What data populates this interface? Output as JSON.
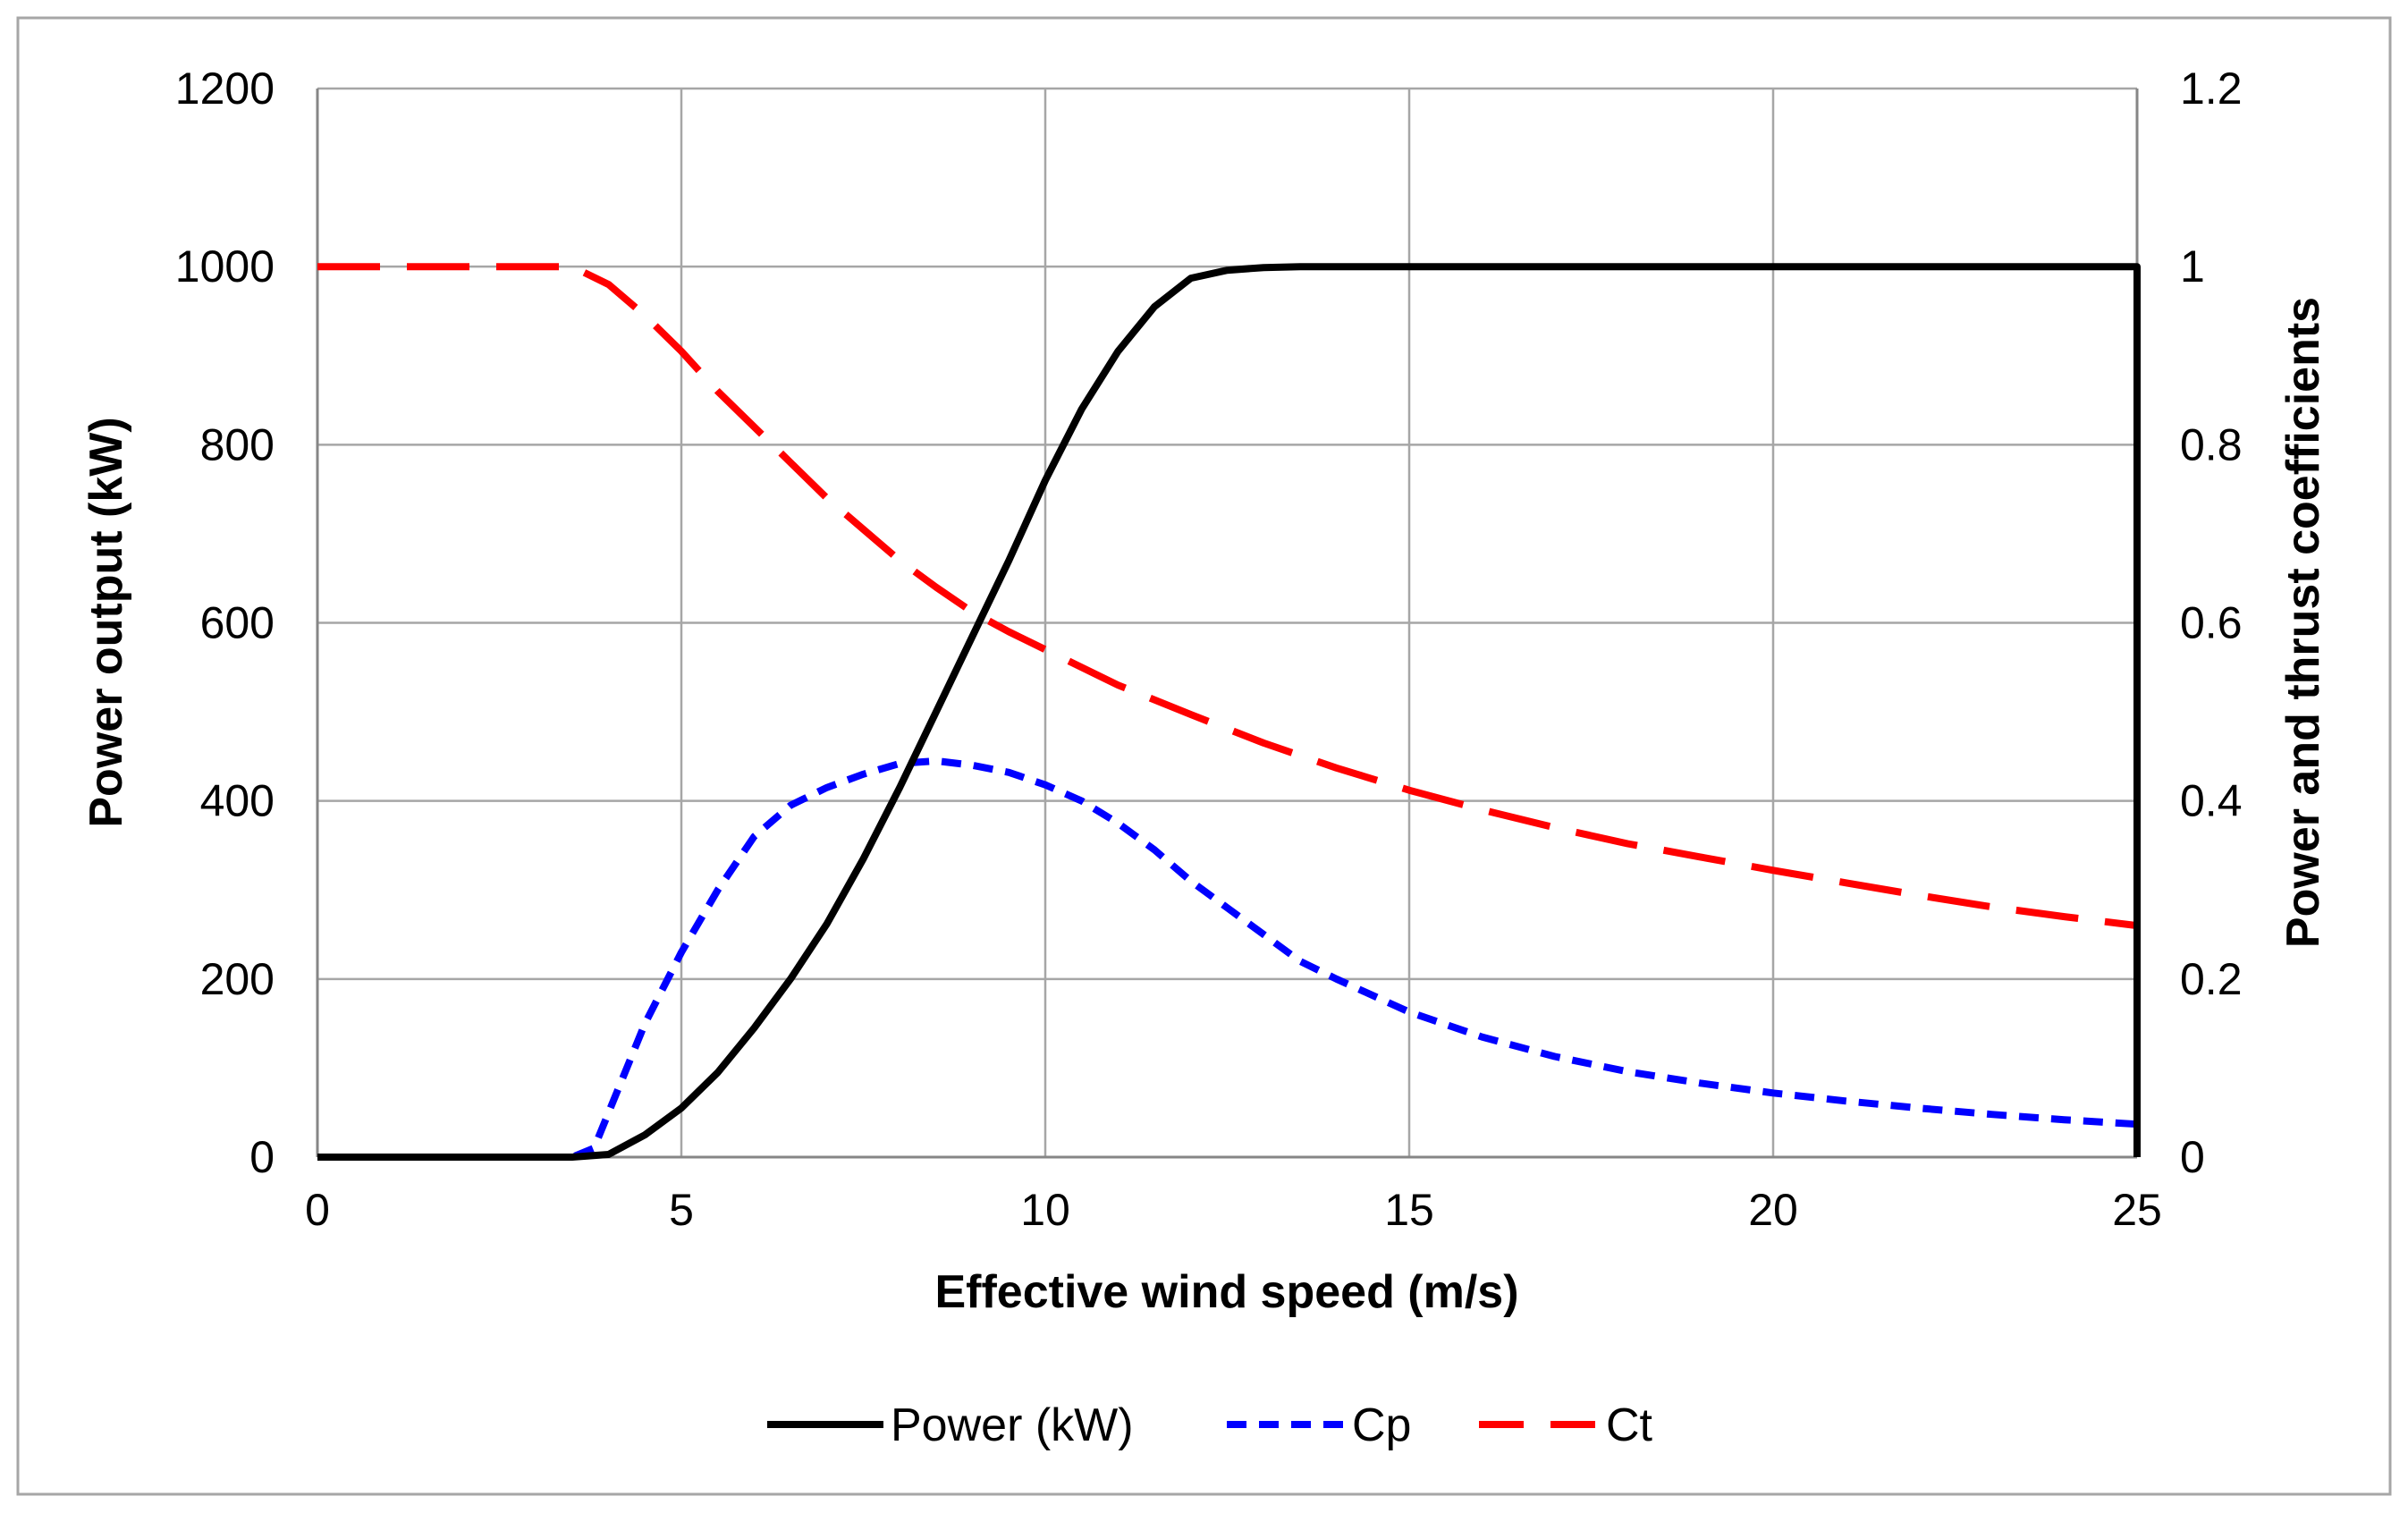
{
  "chart_data": {
    "type": "line",
    "xlabel": "Effective wind speed (m/s)",
    "ylabel": "Power output (kW)",
    "y2label": "Power and thrust coefficients",
    "xlim": [
      0,
      25
    ],
    "ylim": [
      0,
      1200
    ],
    "y2lim": [
      0,
      1.2
    ],
    "xticks": [
      "0",
      "5",
      "10",
      "15",
      "20",
      "25"
    ],
    "yticks": [
      "0",
      "200",
      "400",
      "600",
      "800",
      "1000",
      "1200"
    ],
    "y2ticks": [
      "0",
      "0.2",
      "0.4",
      "0.6",
      "0.8",
      "1",
      "1.2"
    ],
    "grid": true,
    "legend_position": "bottom",
    "series": [
      {
        "name": "Power (kW)",
        "axis": "left",
        "color": "#000000",
        "style": "solid",
        "x": [
          0,
          3.5,
          4,
          4.5,
          5,
          5.5,
          6,
          6.5,
          7,
          7.5,
          8,
          8.5,
          9,
          9.5,
          10,
          10.5,
          11,
          11.5,
          12,
          12.5,
          13,
          13.5,
          14,
          25,
          25
        ],
        "y": [
          0,
          0,
          3,
          25,
          55,
          95,
          145,
          200,
          262,
          335,
          415,
          500,
          585,
          670,
          760,
          840,
          905,
          955,
          987,
          996,
          999,
          1000,
          1000,
          1000,
          0
        ]
      },
      {
        "name": "Cp",
        "axis": "right",
        "color": "#0000ff",
        "style": "short-dash",
        "x": [
          0,
          3.5,
          3.8,
          4,
          4.5,
          5,
          5.5,
          6,
          6.5,
          7,
          7.5,
          8,
          8.5,
          9,
          9.5,
          10,
          10.5,
          11,
          11.5,
          12,
          12.5,
          13,
          13.5,
          14,
          15,
          16,
          17,
          18,
          19,
          20,
          21,
          22,
          23,
          24,
          25
        ],
        "y": [
          0,
          0,
          0.01,
          0.05,
          0.15,
          0.23,
          0.3,
          0.36,
          0.395,
          0.415,
          0.43,
          0.442,
          0.445,
          0.44,
          0.432,
          0.418,
          0.4,
          0.375,
          0.345,
          0.31,
          0.28,
          0.25,
          0.22,
          0.2,
          0.163,
          0.135,
          0.113,
          0.096,
          0.083,
          0.072,
          0.063,
          0.055,
          0.048,
          0.042,
          0.037
        ]
      },
      {
        "name": "Ct",
        "axis": "right",
        "color": "#ff0000",
        "style": "long-dash",
        "x": [
          0,
          3.5,
          4,
          4.5,
          5,
          5.5,
          6,
          6.5,
          7,
          7.5,
          8,
          8.5,
          9,
          9.5,
          10,
          11,
          12,
          13,
          14,
          15,
          16,
          17,
          18,
          19,
          20,
          21,
          22,
          23,
          24,
          25
        ],
        "y": [
          1.0,
          1.0,
          0.98,
          0.945,
          0.905,
          0.86,
          0.82,
          0.78,
          0.74,
          0.705,
          0.67,
          0.64,
          0.612,
          0.59,
          0.57,
          0.53,
          0.497,
          0.465,
          0.437,
          0.412,
          0.39,
          0.37,
          0.352,
          0.337,
          0.322,
          0.308,
          0.294,
          0.281,
          0.27,
          0.26
        ]
      }
    ]
  }
}
